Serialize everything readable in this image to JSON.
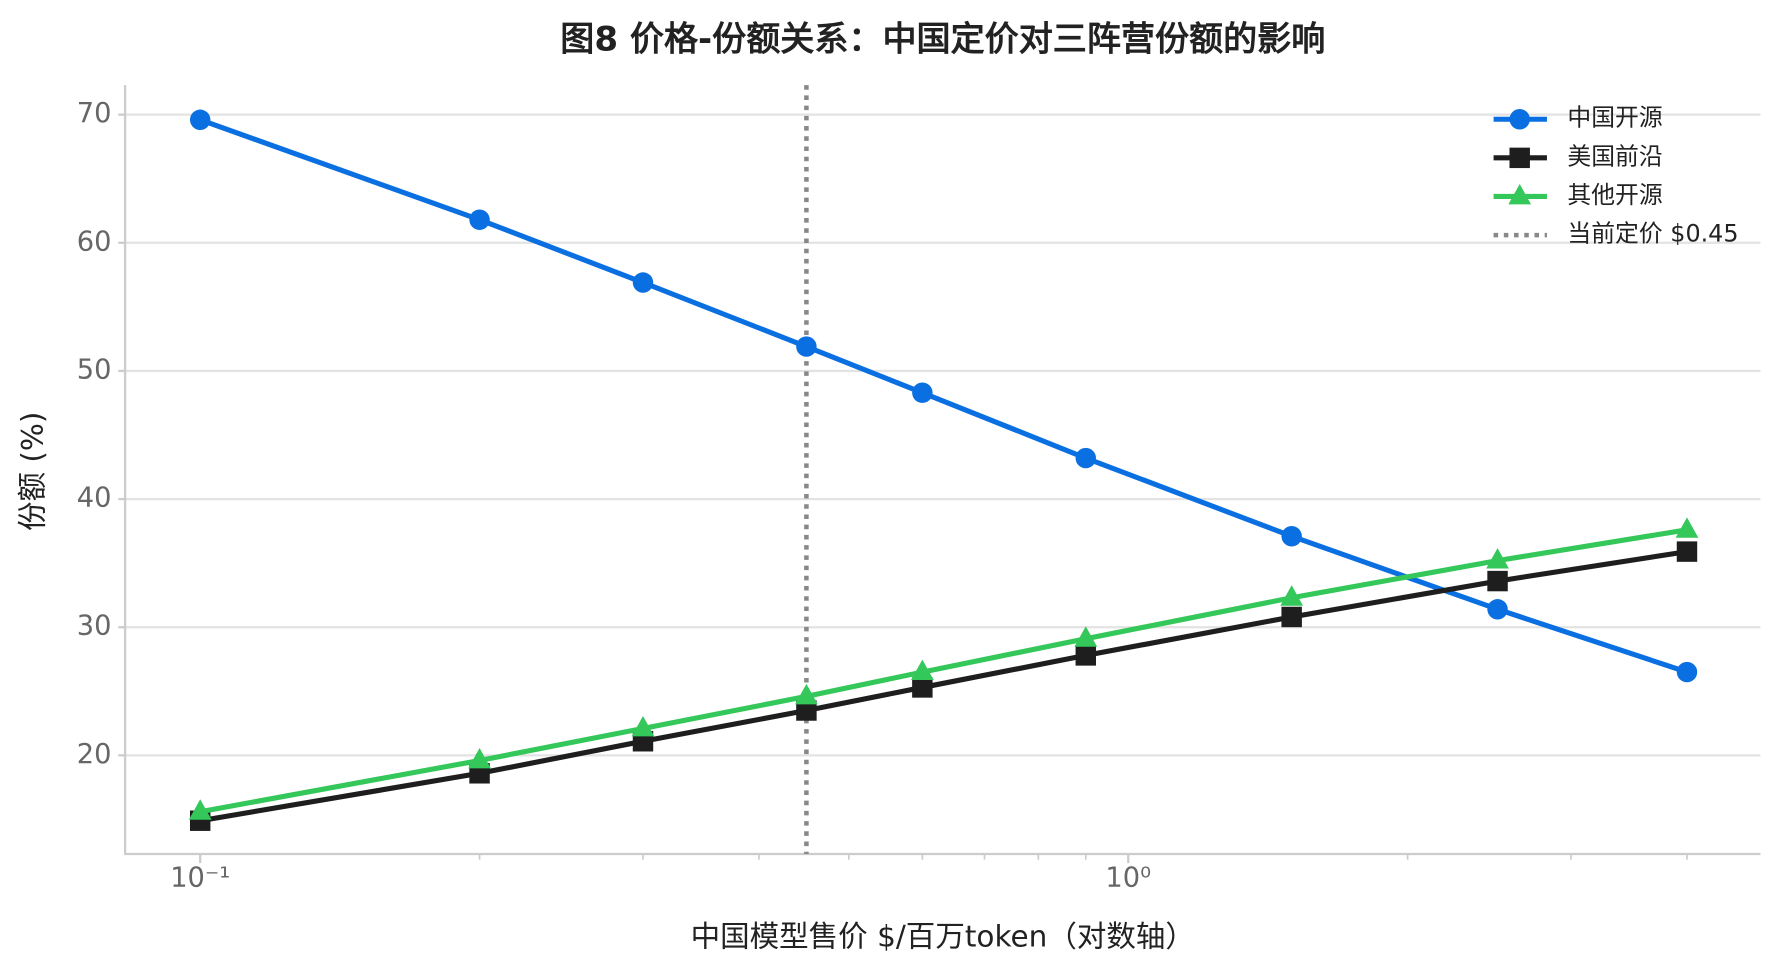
{
  "chart_data": {
    "type": "line",
    "title": "图8 价格-份额关系：中国定价对三阵营份额的影响",
    "xlabel": "中国模型售价 $/百万token（对数轴）",
    "ylabel": "份额 (%)",
    "x": [
      0.1,
      0.2,
      0.3,
      0.45,
      0.6,
      0.9,
      1.5,
      2.5,
      4.0
    ],
    "series": [
      {
        "name": "中国开源",
        "color": "#0a6fe0",
        "marker": "circle",
        "values": [
          69.6,
          61.8,
          56.9,
          51.9,
          48.3,
          43.2,
          37.1,
          31.4,
          26.5
        ]
      },
      {
        "name": "美国前沿",
        "color": "#1e1e1e",
        "marker": "square",
        "values": [
          14.9,
          18.6,
          21.1,
          23.5,
          25.3,
          27.8,
          30.8,
          33.6,
          35.9
        ]
      },
      {
        "name": "其他开源",
        "color": "#34c759",
        "marker": "triangle",
        "values": [
          15.6,
          19.6,
          22.1,
          24.6,
          26.5,
          29.1,
          32.3,
          35.2,
          37.6
        ]
      }
    ],
    "vline": {
      "x": 0.45,
      "name": "当前定价 $0.45",
      "color": "#888888"
    },
    "xscale": "log",
    "xlim": [
      0.083,
      4.8
    ],
    "xticks": [
      {
        "value": 0.1,
        "label": "10⁻¹"
      },
      {
        "value": 1,
        "label": "10⁰"
      }
    ],
    "xminor": [
      0.2,
      0.3,
      0.4,
      0.5,
      0.6,
      0.7,
      0.8,
      0.9,
      2,
      3,
      4
    ],
    "ylim": [
      12.3,
      72.3
    ],
    "yticks": [
      20,
      30,
      40,
      50,
      60,
      70
    ],
    "grid": true,
    "legend": "upper right"
  }
}
